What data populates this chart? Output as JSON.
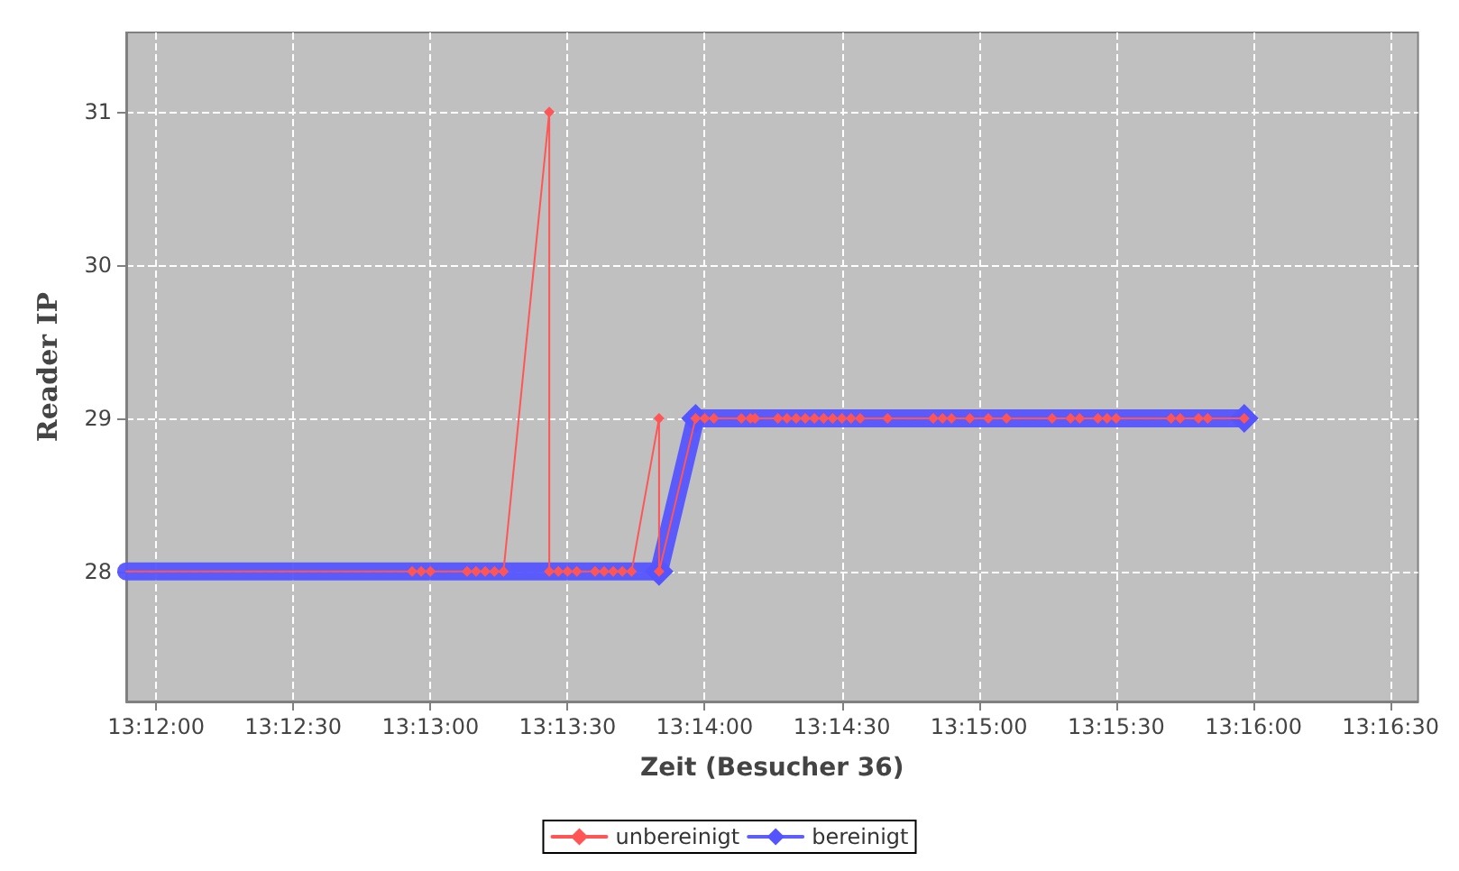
{
  "chart_data": {
    "type": "line",
    "xlabel": "Zeit (Besucher 36)",
    "ylabel": "Reader IP",
    "xlim": [
      13.19819,
      13.27667
    ],
    "xticks": [
      {
        "value": 13.2,
        "label": "13:12:00"
      },
      {
        "value": 13.20833,
        "label": "13:12:30"
      },
      {
        "value": 13.21667,
        "label": "13:13:00"
      },
      {
        "value": 13.225,
        "label": "13:13:30"
      },
      {
        "value": 13.23333,
        "label": "13:14:00"
      },
      {
        "value": 13.24167,
        "label": "13:14:30"
      },
      {
        "value": 13.25,
        "label": "13:15:00"
      },
      {
        "value": 13.25833,
        "label": "13:15:30"
      },
      {
        "value": 13.26667,
        "label": "13:16:00"
      },
      {
        "value": 13.275,
        "label": "13:16:30"
      }
    ],
    "ylim": [
      27.15,
      31.52
    ],
    "yticks": [
      28,
      29,
      30,
      31
    ],
    "grid": true,
    "legend": "bottom",
    "marker": "diamond",
    "line_style": "solid",
    "series": [
      {
        "name": "unbereinigt",
        "color": "#ff5555",
        "x": [
          13.19819,
          13.21556,
          13.21611,
          13.21667,
          13.21889,
          13.21944,
          13.22,
          13.22056,
          13.22111,
          13.22389,
          13.22389,
          13.22444,
          13.225,
          13.22556,
          13.22667,
          13.22722,
          13.22778,
          13.22833,
          13.22889,
          13.23056,
          13.23056,
          13.23278,
          13.23333,
          13.23389,
          13.23556,
          13.23611,
          13.23639,
          13.23778,
          13.23833,
          13.23889,
          13.23944,
          13.24,
          13.24056,
          13.24111,
          13.24167,
          13.24222,
          13.24278,
          13.24444,
          13.24722,
          13.24778,
          13.24833,
          13.24944,
          13.25056,
          13.25167,
          13.25444,
          13.25556,
          13.25611,
          13.25722,
          13.25778,
          13.25833,
          13.26167,
          13.26222,
          13.26333,
          13.26389,
          13.26611
        ],
        "values": [
          28,
          28,
          28,
          28,
          28,
          28,
          28,
          28,
          28,
          31,
          28,
          28,
          28,
          28,
          28,
          28,
          28,
          28,
          28,
          29,
          28,
          29,
          29,
          29,
          29,
          29,
          29,
          29,
          29,
          29,
          29,
          29,
          29,
          29,
          29,
          29,
          29,
          29,
          29,
          29,
          29,
          29,
          29,
          29,
          29,
          29,
          29,
          29,
          29,
          29,
          29,
          29,
          29,
          29,
          29
        ]
      },
      {
        "name": "bereinigt",
        "color": "#5555ff",
        "x": [
          13.19819,
          13.23056,
          13.23278,
          13.26611
        ],
        "values": [
          28,
          28,
          29,
          29
        ]
      }
    ]
  }
}
